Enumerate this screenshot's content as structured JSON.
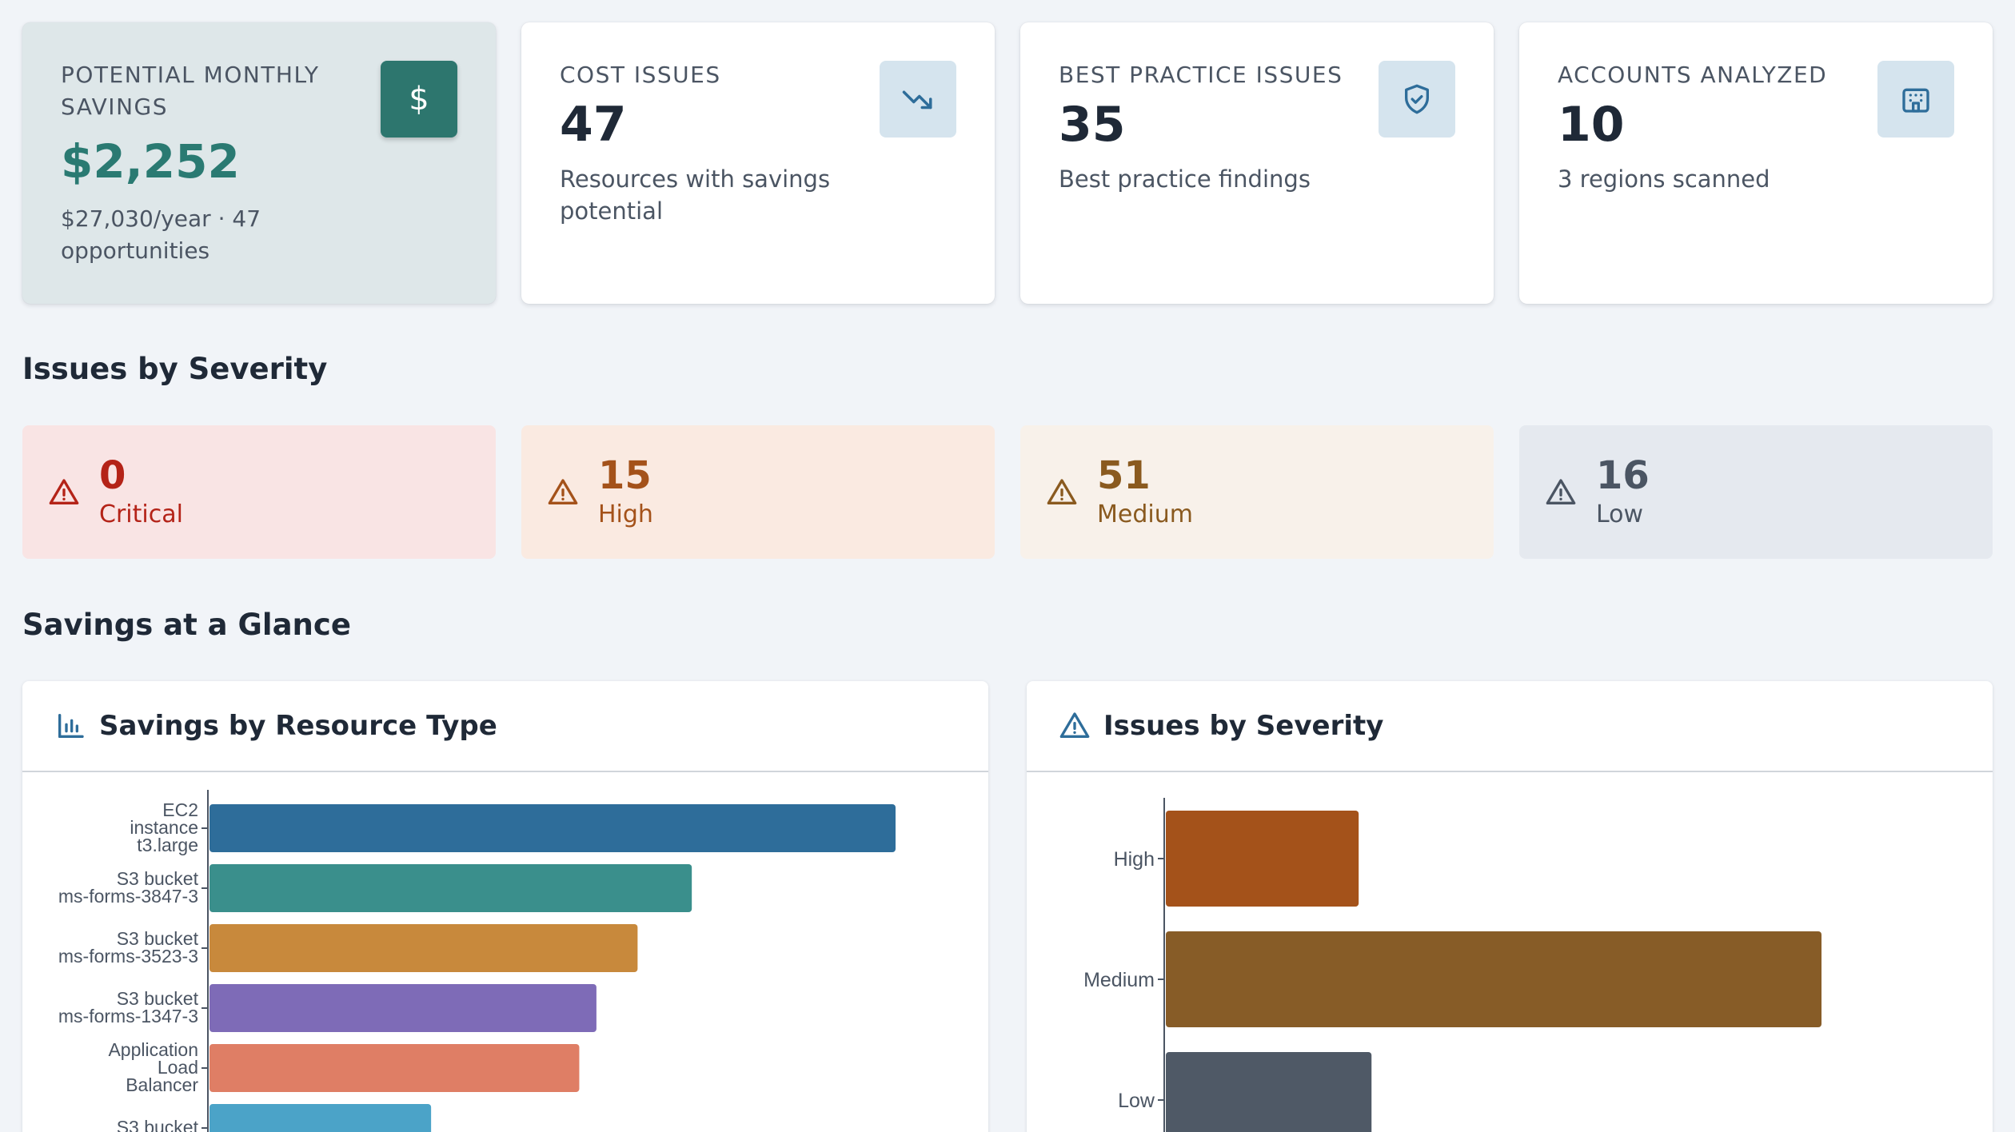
{
  "stats": [
    {
      "label": "POTENTIAL MONTHLY SAVINGS",
      "value": "$2,252",
      "sub": "$27,030/year · 47 opportunities",
      "icon": "dollar-icon"
    },
    {
      "label": "COST ISSUES",
      "value": "47",
      "sub": "Resources with savings potential",
      "icon": "trending-down-icon"
    },
    {
      "label": "BEST PRACTICE ISSUES",
      "value": "35",
      "sub": "Best practice findings",
      "icon": "shield-check-icon"
    },
    {
      "label": "ACCOUNTS ANALYZED",
      "value": "10",
      "sub": "3 regions scanned",
      "icon": "building-icon"
    }
  ],
  "dollar_glyph": "$",
  "severity_section_title": "Issues by Severity",
  "severity": [
    {
      "count": "0",
      "name": "Critical",
      "color": "#b42318",
      "bg": "#f9e4e4"
    },
    {
      "count": "15",
      "name": "High",
      "color": "#a4521a",
      "bg": "#faeae1"
    },
    {
      "count": "51",
      "name": "Medium",
      "color": "#8a5a1f",
      "bg": "#f8f1ea"
    },
    {
      "count": "16",
      "name": "Low",
      "color": "#4b5563",
      "bg": "#e5e9ef"
    }
  ],
  "glance_title": "Savings at a Glance",
  "panels": {
    "resource": {
      "title": "Savings by Resource Type",
      "icon": "bar-chart-icon"
    },
    "severity": {
      "title": "Issues by Severity",
      "icon": "warning-icon"
    }
  },
  "chart_data": [
    {
      "type": "bar",
      "orientation": "horizontal",
      "title": "Savings by Resource Type",
      "categories": [
        [
          "EC2",
          "instance",
          "t3.large"
        ],
        [
          "S3 bucket",
          "ms-forms-3847-3"
        ],
        [
          "S3 bucket",
          "ms-forms-3523-3"
        ],
        [
          "S3 bucket",
          "ms-forms-1347-3"
        ],
        [
          "Application",
          "Load",
          "Balancer"
        ],
        [
          "S3 bucket"
        ]
      ],
      "values": [
        100,
        70.3,
        62.4,
        56.4,
        53.9,
        32.3
      ],
      "colors": [
        "#2e6d9a",
        "#3a8f8c",
        "#c8893c",
        "#7e6bb7",
        "#df7e65",
        "#4ba3c8"
      ]
    },
    {
      "type": "bar",
      "orientation": "horizontal",
      "title": "Issues by Severity",
      "categories": [
        "High",
        "Medium",
        "Low"
      ],
      "values": [
        15,
        51,
        16
      ],
      "colors": [
        "#a4521a",
        "#875c27",
        "#4f5966"
      ]
    }
  ]
}
